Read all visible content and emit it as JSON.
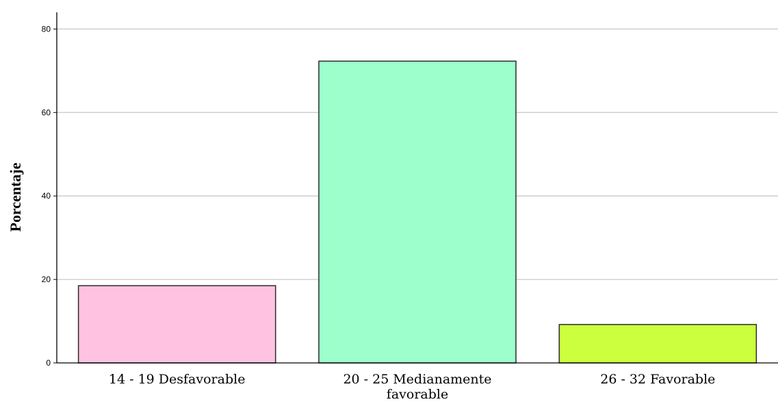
{
  "chart_data": {
    "type": "bar",
    "categories": [
      [
        "14 - 19 Desfavorable"
      ],
      [
        "20 - 25 Medianamente",
        "favorable"
      ],
      [
        "26 - 32 Favorable"
      ]
    ],
    "values": [
      18.5,
      72.3,
      9.2
    ],
    "bar_colors": [
      "#ffc2e1",
      "#9cffcc",
      "#ccff3d"
    ],
    "bar_border_color": "#2b2b2b",
    "grid_color": "#c8c8c8",
    "axis_color": "#000000",
    "title": "",
    "xlabel": "",
    "ylabel": "Porcentaje",
    "ylim": [
      0,
      84
    ],
    "yticks": [
      0,
      20,
      40,
      60,
      80
    ],
    "grid": true,
    "legend": "none"
  }
}
